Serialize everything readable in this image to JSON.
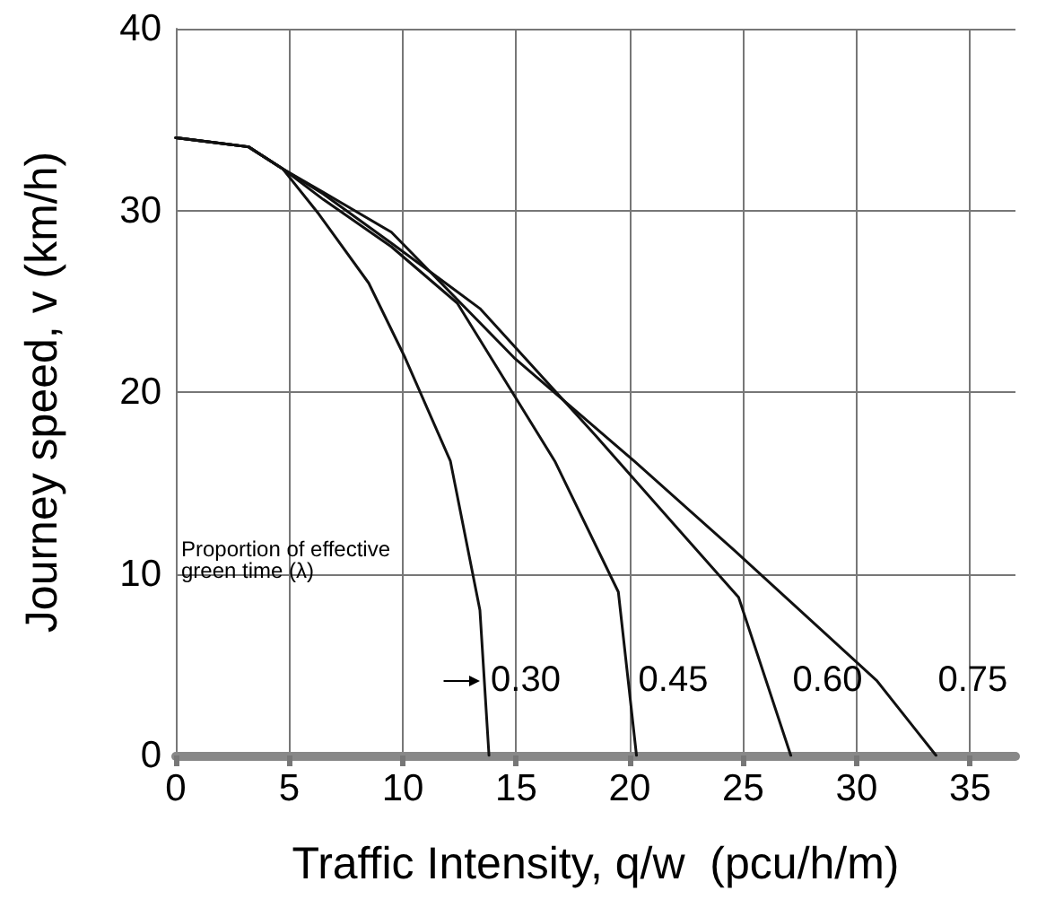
{
  "chart_data": {
    "type": "line",
    "xlabel": "Traffic Intensity, q/w  (pcu/h/m)",
    "ylabel": "Journey speed, v (km/h)",
    "annotations": [
      "Proportion of effective\ngreen time (λ)"
    ],
    "series": [
      {
        "name": "0.30",
        "color": "#111111",
        "x": [
          0,
          3.2,
          4.7,
          6.3,
          8.5,
          10.1,
          12.1,
          13.4,
          13.8
        ],
        "values": [
          34,
          33.5,
          32.3,
          29.8,
          26,
          21.9,
          16.2,
          8,
          0
        ]
      },
      {
        "name": "0.45",
        "color": "#111111",
        "x": [
          0,
          3.2,
          4.7,
          6.5,
          9.5,
          12.4,
          16.7,
          19.5,
          20.3
        ],
        "values": [
          34,
          33.5,
          32.3,
          30.6,
          28,
          24.9,
          16.2,
          9,
          0
        ]
      },
      {
        "name": "0.60",
        "color": "#111111",
        "x": [
          0,
          3.2,
          4.7,
          6.5,
          9.5,
          13.4,
          18.5,
          24.8,
          27.1
        ],
        "values": [
          34,
          33.5,
          32.3,
          30.9,
          28.2,
          24.6,
          17.6,
          8.7,
          0
        ]
      },
      {
        "name": "0.75",
        "color": "#111111",
        "x": [
          0,
          3.2,
          4.7,
          6.5,
          9.5,
          14.9,
          20.2,
          24.6,
          30.9,
          33.5
        ],
        "values": [
          34,
          33.5,
          32.3,
          31,
          28.8,
          21.9,
          16.2,
          11.3,
          4.1,
          0
        ]
      }
    ],
    "xlim": [
      0,
      37
    ],
    "ylim": [
      0,
      40
    ],
    "xticks": [
      0,
      5,
      10,
      15,
      20,
      25,
      30,
      35
    ],
    "yticks": [
      0,
      10,
      20,
      30,
      40
    ],
    "grid": true,
    "legend": false,
    "marker": "none",
    "line_style": "solid"
  }
}
